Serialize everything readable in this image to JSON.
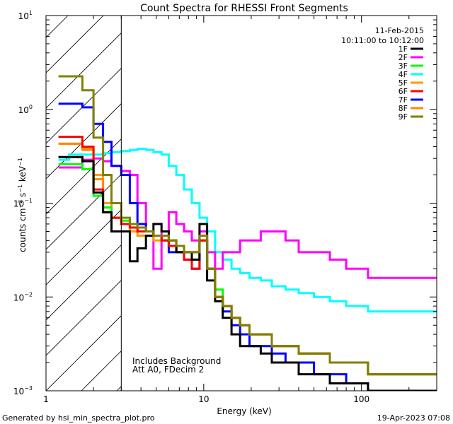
{
  "chart_data": {
    "type": "line",
    "title": "Count Spectra for RHESSI Front Segments",
    "xlabel": "Energy (keV)",
    "ylabel": {
      "prefix": "counts cm",
      "sup1": "−2",
      "mid": " s",
      "sup2": "−1",
      "mid2": " keV",
      "sup3": "−1"
    },
    "x_scale": "log",
    "y_scale": "log",
    "xlim": [
      1,
      300
    ],
    "ylim": [
      0.001,
      10
    ],
    "x_tick_labels": [
      {
        "value": 1,
        "label": "1"
      },
      {
        "value": 10,
        "label": "10"
      },
      {
        "value": 100,
        "label": "100"
      }
    ],
    "y_tick_labels": [
      {
        "value": 0.001,
        "base": "10",
        "exp": "−3"
      },
      {
        "value": 0.01,
        "base": "10",
        "exp": "−2"
      },
      {
        "value": 0.1,
        "base": "10",
        "exp": "−1"
      },
      {
        "value": 1,
        "base": "10",
        "exp": "0"
      },
      {
        "value": 10,
        "base": "10",
        "exp": "1"
      }
    ],
    "attenuator_boundary_keV": 3,
    "legend_placement": "top-right",
    "legend_header": [
      "11-Feb-2015",
      "10:11:00 to 10:12:00"
    ],
    "annotations": [
      "Includes Background",
      "Att A0, FDecim 2"
    ],
    "series": [
      {
        "name": "1F",
        "color": "#000000",
        "values": [
          0.31,
          0.31,
          0.28,
          0.13,
          0.08,
          0.05,
          0.05,
          0.024,
          0.033,
          0.045,
          0.06,
          0.05,
          0.04,
          0.03,
          0.03,
          0.025,
          0.06,
          0.015,
          0.009,
          0.006,
          0.004,
          0.003,
          0.003,
          0.0025,
          0.002,
          0.002,
          0.0015,
          0.0015,
          0.0012,
          0.0012,
          0.001
        ]
      },
      {
        "name": "2F",
        "color": "#ff00ff",
        "values": [
          0.24,
          0.24,
          0.29,
          0.3,
          0.28,
          0.25,
          0.22,
          0.2,
          0.1,
          0.05,
          0.02,
          0.05,
          0.08,
          0.06,
          0.05,
          0.04,
          0.05,
          0.03,
          0.02,
          0.03,
          0.03,
          0.04,
          0.04,
          0.05,
          0.05,
          0.04,
          0.03,
          0.03,
          0.025,
          0.02,
          0.016
        ]
      },
      {
        "name": "3F",
        "color": "#00ff00",
        "values": [
          0.26,
          0.26,
          0.23,
          0.12,
          0.09,
          0.07,
          0.065,
          0.06,
          0.055,
          0.05,
          0.045,
          0.04,
          0.035,
          0.03,
          0.03,
          0.025,
          0.04,
          0.02,
          0.012,
          0.008,
          0.006,
          0.005,
          0.004,
          0.004,
          0.003,
          0.003,
          0.0025,
          0.0025,
          0.002,
          0.002,
          0.0015
        ]
      },
      {
        "name": "4F",
        "color": "#00ffff",
        "values": [
          0.29,
          0.33,
          0.33,
          0.33,
          0.34,
          0.35,
          0.36,
          0.37,
          0.38,
          0.37,
          0.35,
          0.33,
          0.25,
          0.2,
          0.14,
          0.1,
          0.07,
          0.05,
          0.03,
          0.025,
          0.02,
          0.018,
          0.016,
          0.015,
          0.013,
          0.012,
          0.011,
          0.01,
          0.009,
          0.008,
          0.007
        ]
      },
      {
        "name": "5F",
        "color": "#ff9900",
        "values": [
          0.43,
          0.43,
          0.38,
          0.2,
          0.1,
          0.07,
          0.06,
          0.05,
          0.045,
          0.045,
          0.04,
          0.04,
          0.035,
          0.03,
          0.03,
          0.03,
          0.04,
          0.02,
          0.01,
          0.008,
          0.006,
          0.005,
          0.004,
          0.004,
          0.003,
          0.003,
          0.0025,
          0.0025,
          0.002,
          0.002,
          0.0015
        ]
      },
      {
        "name": "6F",
        "color": "#ff0000",
        "values": [
          0.51,
          0.51,
          0.4,
          0.14,
          0.08,
          0.07,
          0.06,
          0.055,
          0.05,
          0.05,
          0.045,
          0.04,
          0.035,
          0.03,
          0.025,
          0.02,
          0.04,
          0.02,
          0.01,
          0.008,
          0.006,
          0.005,
          0.004,
          0.004,
          0.003,
          0.003,
          0.0025,
          0.0025,
          0.002,
          0.002,
          0.0015
        ]
      },
      {
        "name": "7F",
        "color": "#0000ff",
        "values": [
          1.15,
          1.15,
          1.05,
          0.7,
          0.45,
          0.25,
          0.2,
          0.1,
          0.06,
          0.05,
          0.045,
          0.04,
          0.03,
          0.03,
          0.025,
          0.02,
          0.04,
          0.02,
          0.01,
          0.007,
          0.005,
          0.004,
          0.003,
          0.003,
          0.0025,
          0.002,
          0.002,
          0.0015,
          0.0015,
          0.0012,
          0.001
        ]
      },
      {
        "name": "8F",
        "color": "#ff8800",
        "values": [
          0.43,
          0.43,
          0.37,
          0.18,
          0.09,
          0.07,
          0.06,
          0.055,
          0.05,
          0.05,
          0.045,
          0.04,
          0.035,
          0.03,
          0.03,
          0.03,
          0.04,
          0.02,
          0.01,
          0.008,
          0.006,
          0.005,
          0.004,
          0.004,
          0.003,
          0.003,
          0.0025,
          0.0025,
          0.002,
          0.002,
          0.0015
        ]
      },
      {
        "name": "9F",
        "color": "#808000",
        "values": [
          2.25,
          2.25,
          1.6,
          0.5,
          0.2,
          0.1,
          0.07,
          0.06,
          0.055,
          0.05,
          0.045,
          0.045,
          0.04,
          0.035,
          0.03,
          0.03,
          0.045,
          0.02,
          0.01,
          0.008,
          0.006,
          0.005,
          0.004,
          0.004,
          0.003,
          0.003,
          0.0025,
          0.0025,
          0.002,
          0.002,
          0.0015
        ]
      }
    ],
    "energy_bin_edges": [
      1.2,
      1.4,
      1.7,
      2.0,
      2.3,
      2.6,
      3.0,
      3.4,
      3.8,
      4.3,
      4.8,
      5.4,
      6.0,
      6.7,
      7.5,
      8.4,
      9.4,
      10.5,
      11.8,
      13.2,
      15.0,
      17.0,
      19.5,
      23.0,
      27.0,
      33.0,
      40.0,
      50.0,
      63.0,
      80.0,
      110.0,
      300.0
    ]
  },
  "footer": {
    "left": "Generated by hsi_min_spectra_plot.pro",
    "right": "19-Apr-2023 07:08"
  }
}
